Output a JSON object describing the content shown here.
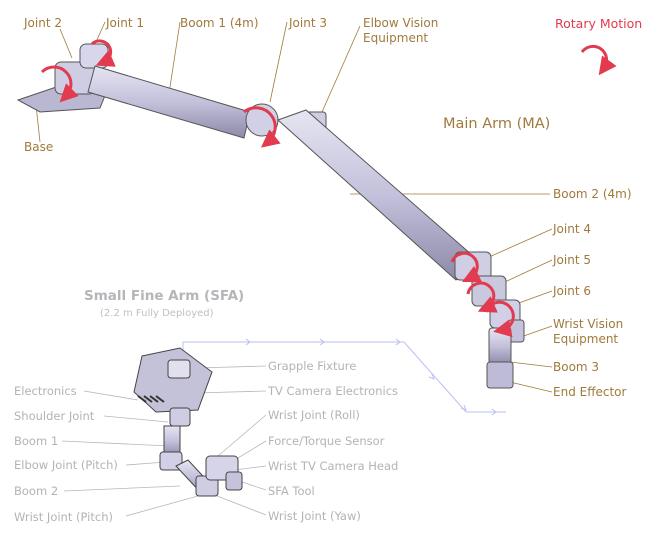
{
  "legend": {
    "rotary_motion": "Rotary Motion"
  },
  "main_arm": {
    "title": "Main Arm (MA)",
    "labels": {
      "joint_2": "Joint 2",
      "joint_1": "Joint 1",
      "boom_1": "Boom 1 (4m)",
      "joint_3": "Joint 3",
      "elbow_vision_1": "Elbow Vision",
      "elbow_vision_2": "Equipment",
      "base": "Base",
      "boom_2": "Boom 2 (4m)",
      "joint_4": "Joint 4",
      "joint_5": "Joint 5",
      "joint_6": "Joint 6",
      "wrist_vision_1": "Wrist Vision",
      "wrist_vision_2": "Equipment",
      "boom_3": "Boom 3",
      "end_effector": "End Effector"
    }
  },
  "sfa": {
    "title": "Small Fine Arm (SFA)",
    "subtitle": "(2.2 m Fully Deployed)",
    "labels": {
      "grapple_fixture": "Grapple Fixture",
      "tv_camera_electronics": "TV Camera Electronics",
      "wrist_joint_roll": "Wrist Joint (Roll)",
      "force_torque_sensor": "Force/Torque Sensor",
      "wrist_tv_camera_head": "Wrist TV Camera Head",
      "sfa_tool": "SFA Tool",
      "wrist_joint_yaw": "Wrist Joint (Yaw)",
      "electronics": "Electronics",
      "shoulder_joint": "Shoulder Joint",
      "boom_1": "Boom 1",
      "elbow_joint_pitch": "Elbow Joint (Pitch)",
      "boom_2": "Boom 2",
      "wrist_joint_pitch": "Wrist Joint (Pitch)"
    }
  },
  "colors": {
    "label": "#a07a3c",
    "rotation_arrow": "#e23a4e",
    "arm_fill": "#c9c7de",
    "sfa_text": "#b3b3b8"
  }
}
